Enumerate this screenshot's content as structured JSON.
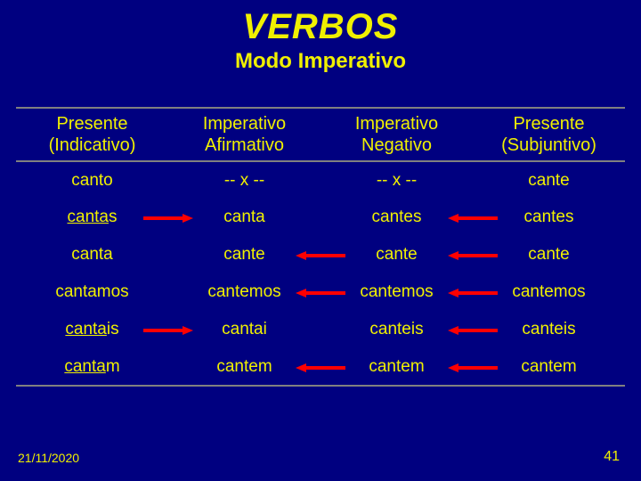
{
  "title": "VERBOS",
  "subtitle": "Modo Imperativo",
  "footer": {
    "date": "21/11/2020",
    "page": "41"
  },
  "colors": {
    "background": "#000080",
    "text": "#f0f000",
    "rule": "#808080",
    "arrow_right": "#ff0000",
    "arrow_left": "#ff0000"
  },
  "table": {
    "headers": [
      {
        "line1": "Presente",
        "line2": "(Indicativo)"
      },
      {
        "line1": "Imperativo",
        "line2": "Afirmativo"
      },
      {
        "line1": "Imperativo",
        "line2": "Negativo"
      },
      {
        "line1": "Presente",
        "line2": "(Subjuntivo)"
      }
    ],
    "rows": [
      {
        "c0": {
          "plain": "canto"
        },
        "c1": {
          "plain": "-- x --"
        },
        "c2": {
          "plain": "-- x --"
        },
        "c3": {
          "plain": "cante"
        },
        "arrow12": false,
        "arrow23": false,
        "arrow34": false
      },
      {
        "c0": {
          "u": "canta",
          "suffix": "s"
        },
        "c1": {
          "plain": "canta"
        },
        "c2": {
          "plain": "cantes"
        },
        "c3": {
          "plain": "cantes"
        },
        "arrow12": true,
        "arrow23": false,
        "arrow34": true
      },
      {
        "c0": {
          "plain": "canta"
        },
        "c1": {
          "plain": "cante"
        },
        "c2": {
          "plain": "cante"
        },
        "c3": {
          "plain": "cante"
        },
        "arrow12": false,
        "arrow23": true,
        "arrow34": true
      },
      {
        "c0": {
          "plain": "cantamos"
        },
        "c1": {
          "plain": "cantemos"
        },
        "c2": {
          "plain": "cantemos"
        },
        "c3": {
          "plain": "cantemos"
        },
        "arrow12": false,
        "arrow23": true,
        "arrow34": true
      },
      {
        "c0": {
          "u": "canta",
          "suffix": "is"
        },
        "c1": {
          "plain": "cantai"
        },
        "c2": {
          "plain": "canteis"
        },
        "c3": {
          "plain": "canteis"
        },
        "arrow12": true,
        "arrow23": false,
        "arrow34": true
      },
      {
        "c0": {
          "u": "canta",
          "suffix": "m"
        },
        "c1": {
          "plain": "cantem"
        },
        "c2": {
          "plain": "cantem"
        },
        "c3": {
          "plain": "cantem"
        },
        "arrow12": false,
        "arrow23": true,
        "arrow34": true
      }
    ]
  },
  "arrows": {
    "right": {
      "width": 56,
      "color": "#ff0000"
    },
    "left": {
      "width": 56,
      "color": "#ff0000"
    }
  }
}
